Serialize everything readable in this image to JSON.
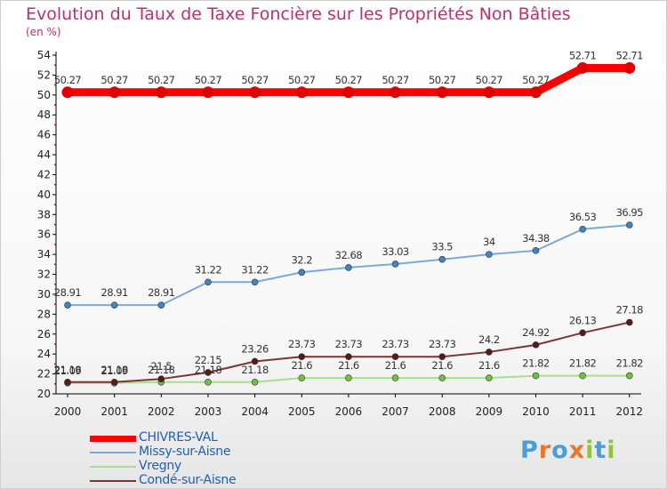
{
  "title": "Evolution du Taux de Taxe Foncière sur les Propriétés Non Bâties",
  "unit_label": "(en %)",
  "brand": {
    "text": "Proxiti",
    "letter_colors": [
      "#4a9fd8",
      "#e8762c",
      "#4a9fd8",
      "#e8762c",
      "#8cc63f",
      "#4a9fd8",
      "#8cc63f"
    ]
  },
  "chart_data": {
    "type": "line",
    "title": "Evolution du Taux de Taxe Foncière sur les Propriétés Non Bâties",
    "ylabel": "(en %)",
    "xlabel": "",
    "ylim": [
      20,
      54
    ],
    "yticks": [
      20,
      22,
      24,
      26,
      28,
      30,
      32,
      34,
      36,
      38,
      40,
      42,
      44,
      46,
      48,
      50,
      52,
      54
    ],
    "categories": [
      "2000",
      "2001",
      "2002",
      "2003",
      "2004",
      "2005",
      "2006",
      "2007",
      "2008",
      "2009",
      "2010",
      "2011",
      "2012"
    ],
    "grid": false,
    "legend_position": "bottom-left",
    "series": [
      {
        "name": "CHIVRES-VAL",
        "color": "#ff0000",
        "marker": "#e00000",
        "values": [
          50.27,
          50.27,
          50.27,
          50.27,
          50.27,
          50.27,
          50.27,
          50.27,
          50.27,
          50.27,
          50.27,
          52.71,
          52.71
        ],
        "labels": [
          "50.27",
          "50.27",
          "50.27",
          "50.27",
          "50.27",
          "50.27",
          "50.27",
          "50.27",
          "50.27",
          "50.27",
          "50.27",
          "52.71",
          "52.71"
        ]
      },
      {
        "name": "Missy-sur-Aisne",
        "color": "#7aaad5",
        "marker": "#3f84c4",
        "values": [
          28.91,
          28.91,
          28.91,
          31.22,
          31.22,
          32.2,
          32.68,
          33.03,
          33.5,
          34,
          34.38,
          36.53,
          36.95
        ],
        "labels": [
          "28.91",
          "28.91",
          "28.91",
          "31.22",
          "31.22",
          "32.2",
          "32.68",
          "33.03",
          "33.5",
          "34",
          "34.38",
          "36.53",
          "36.95"
        ]
      },
      {
        "name": "Vregny",
        "color": "#a8e08c",
        "marker": "#6fc23f",
        "values": [
          21.09,
          21.09,
          21.18,
          21.18,
          21.18,
          21.6,
          21.6,
          21.6,
          21.6,
          21.6,
          21.82,
          21.82,
          21.82
        ],
        "labels": [
          "21.09",
          "21.09",
          "21.18",
          "21.18",
          "21.18",
          "21.6",
          "21.6",
          "21.6",
          "21.6",
          "21.6",
          "21.82",
          "21.82",
          "21.82"
        ]
      },
      {
        "name": "Condé-sur-Aisne",
        "color": "#7a3535",
        "marker": "#5a1a1a",
        "values": [
          21.18,
          21.18,
          21.5,
          22.15,
          23.26,
          23.73,
          23.73,
          23.73,
          23.73,
          24.2,
          24.92,
          26.13,
          27.18
        ],
        "labels": [
          "21.18",
          "21.18",
          "21.5",
          "22.15",
          "23.26",
          "23.73",
          "23.73",
          "23.73",
          "23.73",
          "24.2",
          "24.92",
          "26.13",
          "27.18"
        ]
      }
    ]
  }
}
